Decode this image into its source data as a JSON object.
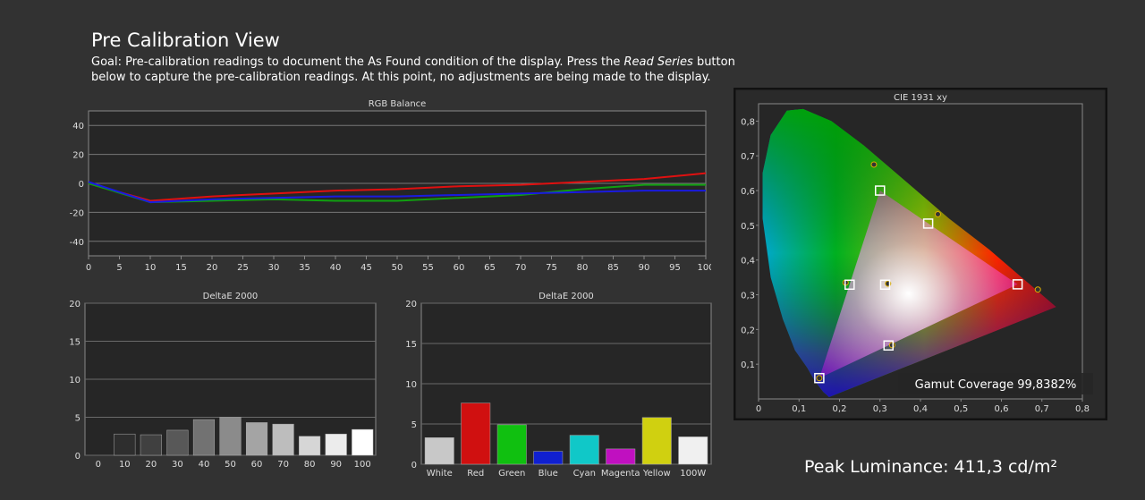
{
  "page": {
    "title": "Pre Calibration View",
    "goal_pre": "Goal: Pre-calibration readings to document the As Found condition of the display. Press the ",
    "goal_em": "Read Series",
    "goal_post": " button below to capture the pre-calibration readings. At this point, no adjustments are being made to the display.",
    "peak_luminance": "Peak Luminance: 411,3 cd/m²"
  },
  "chart_data": [
    {
      "type": "line",
      "title": "RGB Balance",
      "xlim": [
        0,
        100
      ],
      "ylim": [
        -50,
        50
      ],
      "x_ticks": [
        "0",
        "5",
        "10",
        "15",
        "20",
        "25",
        "30",
        "35",
        "40",
        "45",
        "50",
        "55",
        "60",
        "65",
        "70",
        "75",
        "80",
        "85",
        "90",
        "95",
        "100"
      ],
      "y_ticks": [
        "40",
        "20",
        "0",
        "-20",
        "-40"
      ],
      "grid": true,
      "series": [
        {
          "color": "#e01010",
          "x": [
            0,
            10,
            20,
            30,
            40,
            50,
            60,
            70,
            80,
            90,
            100
          ],
          "values": [
            0,
            -12,
            -9,
            -7,
            -5,
            -4,
            -2,
            -1,
            1,
            3,
            7
          ]
        },
        {
          "color": "#10a010",
          "x": [
            0,
            10,
            20,
            30,
            40,
            50,
            60,
            70,
            80,
            90,
            100
          ],
          "values": [
            0,
            -13,
            -12,
            -11,
            -12,
            -12,
            -10,
            -8,
            -4,
            -1,
            -1
          ]
        },
        {
          "color": "#1a1ae0",
          "x": [
            0,
            10,
            20,
            30,
            40,
            50,
            60,
            70,
            80,
            90,
            100
          ],
          "values": [
            1,
            -13,
            -11,
            -10,
            -9,
            -9,
            -8,
            -7,
            -6,
            -5,
            -5
          ]
        }
      ]
    },
    {
      "type": "bar",
      "title": "DeltaE 2000",
      "categories": [
        "0",
        "10",
        "20",
        "30",
        "40",
        "50",
        "60",
        "70",
        "80",
        "90",
        "100"
      ],
      "values": [
        0,
        2.8,
        2.7,
        3.3,
        4.7,
        5.0,
        4.3,
        4.1,
        2.5,
        2.8,
        3.4
      ],
      "colors": [
        "#000000",
        "#2e2e2e",
        "#404040",
        "#585858",
        "#727272",
        "#8b8b8b",
        "#a4a4a4",
        "#bdbdbd",
        "#d6d6d6",
        "#ececec",
        "#ffffff"
      ],
      "ylim": [
        0,
        20
      ],
      "y_ticks": [
        "20",
        "15",
        "10",
        "5",
        "0"
      ],
      "grid": true
    },
    {
      "type": "bar",
      "title": "DeltaE 2000",
      "categories": [
        "White",
        "Red",
        "Green",
        "Blue",
        "Cyan",
        "Magenta",
        "Yellow",
        "100W"
      ],
      "values": [
        3.3,
        7.6,
        4.9,
        1.6,
        3.6,
        1.9,
        5.8,
        3.4
      ],
      "colors": [
        "#c8c8c8",
        "#d01010",
        "#10c010",
        "#1020d0",
        "#10c8c8",
        "#c010c0",
        "#d0d010",
        "#f0f0f0"
      ],
      "ylim": [
        0,
        20
      ],
      "y_ticks": [
        "20",
        "15",
        "10",
        "5",
        "0"
      ],
      "grid": true
    },
    {
      "type": "scatter",
      "title": "CIE 1931 xy",
      "xlim": [
        0,
        0.8
      ],
      "ylim": [
        0,
        0.85
      ],
      "x_ticks": [
        "0",
        "0,1",
        "0,2",
        "0,3",
        "0,4",
        "0,5",
        "0,6",
        "0,7",
        "0,8"
      ],
      "y_ticks": [
        "0,1",
        "0,2",
        "0,3",
        "0,4",
        "0,5",
        "0,6",
        "0,7",
        "0,8"
      ],
      "grid": false,
      "gamut_coverage": "Gamut Coverage 99,8382%",
      "targets": [
        {
          "name": "Red",
          "x": 0.64,
          "y": 0.33
        },
        {
          "name": "Green",
          "x": 0.3,
          "y": 0.6
        },
        {
          "name": "Blue",
          "x": 0.15,
          "y": 0.06
        },
        {
          "name": "Cyan",
          "x": 0.225,
          "y": 0.329
        },
        {
          "name": "Magenta",
          "x": 0.321,
          "y": 0.154
        },
        {
          "name": "Yellow",
          "x": 0.419,
          "y": 0.505
        },
        {
          "name": "White",
          "x": 0.3127,
          "y": 0.329
        }
      ],
      "measured": [
        {
          "x": 0.69,
          "y": 0.315
        },
        {
          "x": 0.285,
          "y": 0.675
        },
        {
          "x": 0.443,
          "y": 0.532
        },
        {
          "x": 0.215,
          "y": 0.335
        },
        {
          "x": 0.32,
          "y": 0.332
        },
        {
          "x": 0.33,
          "y": 0.155
        },
        {
          "x": 0.15,
          "y": 0.06
        }
      ]
    }
  ]
}
